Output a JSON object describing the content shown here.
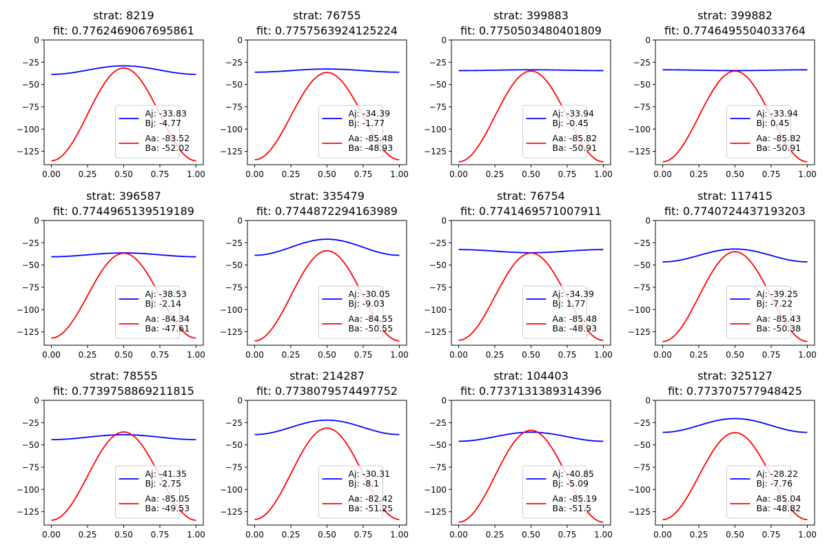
{
  "figure": {
    "rows": 3,
    "cols": 4,
    "x_ticks": [
      "0.00",
      "0.25",
      "0.50",
      "0.75",
      "1.00"
    ],
    "y_ticks": [
      "0",
      "−25",
      "−50",
      "−75",
      "−100",
      "−125"
    ],
    "colors": {
      "j_curve": "#0000ff",
      "a_curve": "#ff0000",
      "axes": "#000000",
      "legend_border": "#cccccc"
    }
  },
  "chart_data": [
    {
      "type": "line",
      "title": "strat: 8219\nfit: 0.7762469067695861",
      "x": [
        0,
        1
      ],
      "xlim": [
        -0.05,
        1.05
      ],
      "ylim": [
        -140,
        0
      ],
      "grid": false,
      "legend_position": "lower center",
      "series": [
        {
          "name": "Aj: -33.83\nBj: -4.77",
          "A": -33.83,
          "B": -4.77,
          "color": "#0000ff"
        },
        {
          "name": "Aa: -83.52\nBa: -52.02",
          "A": -83.52,
          "B": -52.02,
          "color": "#ff0000"
        }
      ]
    },
    {
      "type": "line",
      "title": "strat: 76755\nfit: 0.7757563924125224",
      "x": [
        0,
        1
      ],
      "xlim": [
        -0.05,
        1.05
      ],
      "ylim": [
        -140,
        0
      ],
      "grid": false,
      "legend_position": "lower center",
      "series": [
        {
          "name": "Aj: -34.39\nBj: -1.77",
          "A": -34.39,
          "B": -1.77,
          "color": "#0000ff"
        },
        {
          "name": "Aa: -85.48\nBa: -48.93",
          "A": -85.48,
          "B": -48.93,
          "color": "#ff0000"
        }
      ]
    },
    {
      "type": "line",
      "title": "strat: 399883\nfit: 0.7750503480401809",
      "x": [
        0,
        1
      ],
      "xlim": [
        -0.05,
        1.05
      ],
      "ylim": [
        -140,
        0
      ],
      "grid": false,
      "legend_position": "lower center",
      "series": [
        {
          "name": "Aj: -33.94\nBj: -0.45",
          "A": -33.94,
          "B": -0.45,
          "color": "#0000ff"
        },
        {
          "name": "Aa: -85.82\nBa: -50.91",
          "A": -85.82,
          "B": -50.91,
          "color": "#ff0000"
        }
      ]
    },
    {
      "type": "line",
      "title": "strat: 399882\nfit: 0.7746495504033764",
      "x": [
        0,
        1
      ],
      "xlim": [
        -0.05,
        1.05
      ],
      "ylim": [
        -140,
        0
      ],
      "grid": false,
      "legend_position": "lower center",
      "series": [
        {
          "name": "Aj: -33.94\nBj: 0.45",
          "A": -33.94,
          "B": 0.45,
          "color": "#0000ff"
        },
        {
          "name": "Aa: -85.82\nBa: -50.91",
          "A": -85.82,
          "B": -50.91,
          "color": "#ff0000"
        }
      ]
    },
    {
      "type": "line",
      "title": "strat: 396587\nfit: 0.7744965139519189",
      "x": [
        0,
        1
      ],
      "xlim": [
        -0.05,
        1.05
      ],
      "ylim": [
        -140,
        0
      ],
      "grid": false,
      "legend_position": "lower center",
      "series": [
        {
          "name": "Aj: -38.53\nBj: -2.14",
          "A": -38.53,
          "B": -2.14,
          "color": "#0000ff"
        },
        {
          "name": "Aa: -84.34\nBa: -47.61",
          "A": -84.34,
          "B": -47.61,
          "color": "#ff0000"
        }
      ]
    },
    {
      "type": "line",
      "title": "strat: 335479\nfit: 0.7744872294163989",
      "x": [
        0,
        1
      ],
      "xlim": [
        -0.05,
        1.05
      ],
      "ylim": [
        -140,
        0
      ],
      "grid": false,
      "legend_position": "lower center",
      "series": [
        {
          "name": "Aj: -30.05\nBj: -9.03",
          "A": -30.05,
          "B": -9.03,
          "color": "#0000ff"
        },
        {
          "name": "Aa: -84.55\nBa: -50.55",
          "A": -84.55,
          "B": -50.55,
          "color": "#ff0000"
        }
      ]
    },
    {
      "type": "line",
      "title": "strat: 76754\nfit: 0.7741469571007911",
      "x": [
        0,
        1
      ],
      "xlim": [
        -0.05,
        1.05
      ],
      "ylim": [
        -140,
        0
      ],
      "grid": false,
      "legend_position": "lower center",
      "series": [
        {
          "name": "Aj: -34.39\nBj: 1.77",
          "A": -34.39,
          "B": 1.77,
          "color": "#0000ff"
        },
        {
          "name": "Aa: -85.48\nBa: -48.93",
          "A": -85.48,
          "B": -48.93,
          "color": "#ff0000"
        }
      ]
    },
    {
      "type": "line",
      "title": "strat: 117415\nfit: 0.7740724437193203",
      "x": [
        0,
        1
      ],
      "xlim": [
        -0.05,
        1.05
      ],
      "ylim": [
        -140,
        0
      ],
      "grid": false,
      "legend_position": "lower center",
      "series": [
        {
          "name": "Aj: -39.25\nBj: -7.22",
          "A": -39.25,
          "B": -7.22,
          "color": "#0000ff"
        },
        {
          "name": "Aa: -85.43\nBa: -50.38",
          "A": -85.43,
          "B": -50.38,
          "color": "#ff0000"
        }
      ]
    },
    {
      "type": "line",
      "title": "strat: 78555\nfit: 0.7739758869211815",
      "x": [
        0,
        1
      ],
      "xlim": [
        -0.05,
        1.05
      ],
      "ylim": [
        -140,
        0
      ],
      "grid": false,
      "legend_position": "lower center",
      "series": [
        {
          "name": "Aj: -41.35\nBj: -2.75",
          "A": -41.35,
          "B": -2.75,
          "color": "#0000ff"
        },
        {
          "name": "Aa: -85.05\nBa: -49.53",
          "A": -85.05,
          "B": -49.53,
          "color": "#ff0000"
        }
      ]
    },
    {
      "type": "line",
      "title": "strat: 214287\nfit: 0.7738079574497752",
      "x": [
        0,
        1
      ],
      "xlim": [
        -0.05,
        1.05
      ],
      "ylim": [
        -140,
        0
      ],
      "grid": false,
      "legend_position": "lower center",
      "series": [
        {
          "name": "Aj: -30.31\nBj: -8.1",
          "A": -30.31,
          "B": -8.1,
          "color": "#0000ff"
        },
        {
          "name": "Aa: -82.42\nBa: -51.25",
          "A": -82.42,
          "B": -51.25,
          "color": "#ff0000"
        }
      ]
    },
    {
      "type": "line",
      "title": "strat: 104403\nfit: 0.7737131389314396",
      "x": [
        0,
        1
      ],
      "xlim": [
        -0.05,
        1.05
      ],
      "ylim": [
        -140,
        0
      ],
      "grid": false,
      "legend_position": "lower center",
      "series": [
        {
          "name": "Aj: -40.85\nBj: -5.09",
          "A": -40.85,
          "B": -5.09,
          "color": "#0000ff"
        },
        {
          "name": "Aa: -85.19\nBa: -51.5",
          "A": -85.19,
          "B": -51.5,
          "color": "#ff0000"
        }
      ]
    },
    {
      "type": "line",
      "title": "strat: 325127\nfit: 0.773707577948425",
      "x": [
        0,
        1
      ],
      "xlim": [
        -0.05,
        1.05
      ],
      "ylim": [
        -140,
        0
      ],
      "grid": false,
      "legend_position": "lower center",
      "series": [
        {
          "name": "Aj: -28.22\nBj: -7.76",
          "A": -28.22,
          "B": -7.76,
          "color": "#0000ff"
        },
        {
          "name": "Aa: -85.04\nBa: -48.82",
          "A": -85.04,
          "B": -48.82,
          "color": "#ff0000"
        }
      ]
    }
  ]
}
